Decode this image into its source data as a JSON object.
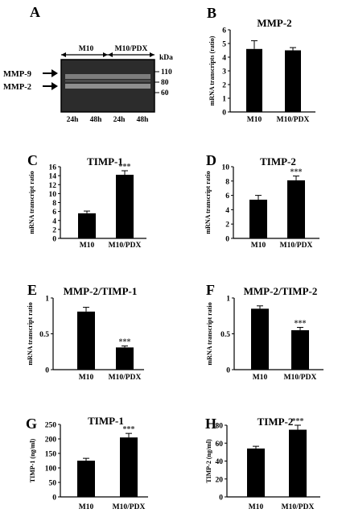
{
  "blot": {
    "letter": "A",
    "groups": [
      "M10",
      "M10/PDX"
    ],
    "lanes": [
      "24h",
      "48h",
      "24h",
      "48h"
    ],
    "unit": "kDa",
    "markers": [
      "110",
      "80",
      "60"
    ],
    "bands": [
      "MMP-9",
      "MMP-2"
    ]
  },
  "chart_data": [
    {
      "id": "B",
      "letter": "B",
      "type": "bar",
      "title": "MMP-2",
      "ylabel": "mRNA transcripts (ratio)",
      "categories": [
        "M10",
        "M10/PDX"
      ],
      "values": [
        4.6,
        4.5
      ],
      "errors": [
        0.6,
        0.2
      ],
      "ylim": [
        0,
        6
      ],
      "yticks": [
        "0",
        "1",
        "2",
        "3",
        "4",
        "5",
        "6"
      ],
      "significance": [
        "",
        ""
      ]
    },
    {
      "id": "C",
      "letter": "C",
      "type": "bar",
      "title": "TIMP-1",
      "ylabel": "mRNA transcript ratio",
      "categories": [
        "M10",
        "M10/PDX"
      ],
      "values": [
        5.6,
        14.2
      ],
      "errors": [
        0.5,
        0.9
      ],
      "ylim": [
        0,
        16
      ],
      "yticks": [
        "0",
        "2",
        "4",
        "6",
        "8",
        "10",
        "12",
        "14",
        "16"
      ],
      "significance": [
        "",
        "***"
      ]
    },
    {
      "id": "D",
      "letter": "D",
      "type": "bar",
      "title": "TIMP-2",
      "ylabel": "mRNA transcript ratio",
      "categories": [
        "M10",
        "M10/PDX"
      ],
      "values": [
        5.4,
        8.1
      ],
      "errors": [
        0.6,
        0.6
      ],
      "ylim": [
        0,
        10
      ],
      "yticks": [
        "0",
        "2",
        "4",
        "6",
        "8",
        "10"
      ],
      "significance": [
        "",
        "***"
      ]
    },
    {
      "id": "E",
      "letter": "E",
      "type": "bar",
      "title": "MMP-2/TIMP-1",
      "ylabel": "mRNA transcript ratio",
      "categories": [
        "M10",
        "M10/PDX"
      ],
      "values": [
        0.81,
        0.31
      ],
      "errors": [
        0.06,
        0.02
      ],
      "ylim": [
        0,
        1
      ],
      "yticks": [
        "0",
        "0.5",
        "1"
      ],
      "significance": [
        "",
        "***"
      ]
    },
    {
      "id": "F",
      "letter": "F",
      "type": "bar",
      "title": "MMP-2/TIMP-2",
      "ylabel": "mRNA transcript ratio",
      "categories": [
        "M10",
        "M10/PDX"
      ],
      "values": [
        0.85,
        0.55
      ],
      "errors": [
        0.04,
        0.04
      ],
      "ylim": [
        0,
        1
      ],
      "yticks": [
        "0",
        "0.5",
        "1"
      ],
      "significance": [
        "",
        "***"
      ]
    },
    {
      "id": "G",
      "letter": "G",
      "type": "bar",
      "title": "TIMP-1",
      "ylabel": "TIMP-1 (ng/ml)",
      "categories": [
        "M10",
        "M10/PDX"
      ],
      "values": [
        125,
        205
      ],
      "errors": [
        8,
        14
      ],
      "ylim": [
        0,
        250
      ],
      "yticks": [
        "0",
        "50",
        "100",
        "150",
        "200",
        "250"
      ],
      "significance": [
        "",
        "***"
      ]
    },
    {
      "id": "H",
      "letter": "H",
      "type": "bar",
      "title": "TIMP-2",
      "ylabel": "TIMP-2 (ng/ml)",
      "categories": [
        "M10",
        "M10/PDX"
      ],
      "values": [
        54,
        75
      ],
      "errors": [
        2.5,
        5
      ],
      "ylim": [
        0,
        80
      ],
      "yticks": [
        "0",
        "20",
        "40",
        "60",
        "80"
      ],
      "significance": [
        "",
        "***"
      ]
    }
  ]
}
